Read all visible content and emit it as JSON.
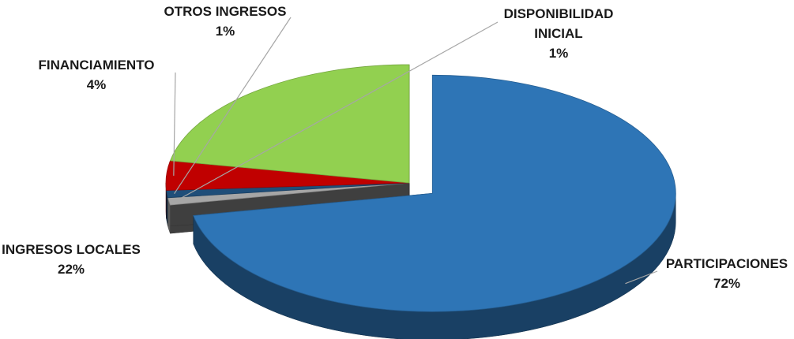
{
  "chart_data": {
    "type": "pie",
    "title": "",
    "three_d": true,
    "slices": [
      {
        "name": "PARTICIPACIONES",
        "value": 72,
        "value_label": "72%",
        "color": "#2E75B6",
        "exploded": true
      },
      {
        "name": "DISPONIBILIDAD INICIAL",
        "value": 1,
        "value_label": "1%",
        "color": "#A6A6A6",
        "exploded": false
      },
      {
        "name": "OTROS INGRESOS",
        "value": 1,
        "value_label": "1%",
        "color": "#1F4E79",
        "exploded": false
      },
      {
        "name": "FINANCIAMIENTO",
        "value": 4,
        "value_label": "4%",
        "color": "#C00000",
        "exploded": false
      },
      {
        "name": "INGRESOS LOCALES",
        "value": 22,
        "value_label": "22%",
        "color": "#92D050",
        "exploded": false
      }
    ]
  }
}
